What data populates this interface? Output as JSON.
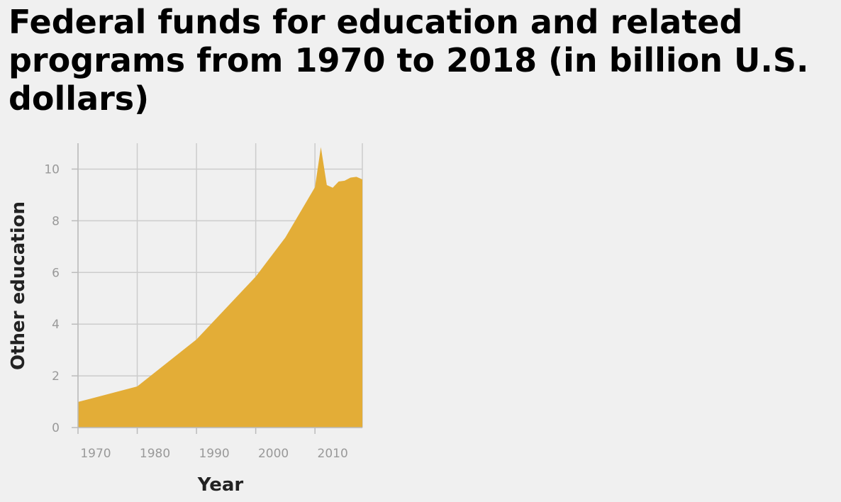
{
  "chart_data": {
    "type": "area",
    "title": "Federal funds for education and related programs from 1970 to 2018 (in billion U.S. dollars)",
    "xlabel": "Year",
    "ylabel": "Other education",
    "xlim": [
      1970,
      2018
    ],
    "ylim": [
      0,
      11
    ],
    "xticks": [
      1970,
      1980,
      1990,
      2000,
      2010
    ],
    "yticks": [
      0,
      2,
      4,
      6,
      8,
      10
    ],
    "grid": true,
    "color": "#e3ad37",
    "series": [
      {
        "x": [
          1970,
          1980,
          1990,
          2000,
          2005,
          2010,
          2011,
          2012,
          2013,
          2014,
          2015,
          2016,
          2017,
          2018
        ],
        "values": [
          0.99,
          1.59,
          3.41,
          5.84,
          7.35,
          9.3,
          10.85,
          9.38,
          9.28,
          9.52,
          9.55,
          9.67,
          9.7,
          9.6
        ]
      }
    ]
  }
}
